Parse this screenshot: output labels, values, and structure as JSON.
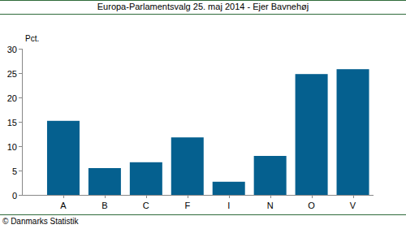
{
  "chart_data": {
    "type": "bar",
    "title": "Europa-Parlamentsvalg 25. maj 2014 - Ejer Bavnehøj",
    "y_label": "Pct.",
    "source": "© Danmarks Statistik",
    "categories": [
      "A",
      "B",
      "C",
      "F",
      "I",
      "N",
      "O",
      "V"
    ],
    "values": [
      15.2,
      5.5,
      6.7,
      11.8,
      2.7,
      8.0,
      24.8,
      25.8
    ],
    "color": "#05608f",
    "ylim": [
      0,
      30
    ],
    "yticks": [
      0,
      5,
      10,
      15,
      20,
      25,
      30
    ],
    "grid": false
  }
}
